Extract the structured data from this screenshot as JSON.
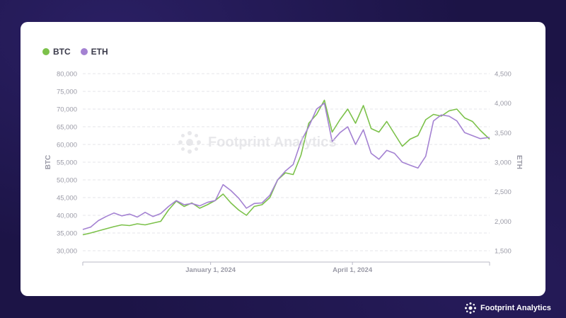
{
  "brand": {
    "name": "Footprint Analytics",
    "icon": "footprint-logo-icon"
  },
  "watermark": "Footprint Analytics",
  "colors": {
    "btc": "#7cc14a",
    "eth": "#a482d2",
    "grid": "#e6e6ea",
    "axis_text": "#9a9aa6",
    "background": "#1c1446"
  },
  "chart_data": {
    "type": "line",
    "title": "",
    "legend": [
      "BTC",
      "ETH"
    ],
    "legend_placement": "top-left",
    "grid": true,
    "x_axis": {
      "ticks": [
        "January 1, 2024",
        "April 1, 2024"
      ],
      "range": [
        "2023-10-11",
        "2024-06-28"
      ]
    },
    "y_left": {
      "label": "BTC",
      "range": [
        30000,
        80000
      ],
      "ticks": [
        "30,000",
        "35,000",
        "40,000",
        "45,000",
        "50,000",
        "55,000",
        "60,000",
        "65,000",
        "70,000",
        "75,000",
        "80,000"
      ]
    },
    "y_right": {
      "label": "ETH",
      "range": [
        1500,
        4500
      ],
      "ticks": [
        "1,500",
        "2,000",
        "2,500",
        "3,000",
        "3,500",
        "4,000",
        "4,500"
      ]
    },
    "series": [
      {
        "name": "BTC",
        "axis": "left",
        "points": [
          [
            "2023-10-11",
            34500
          ],
          [
            "2023-10-16",
            35000
          ],
          [
            "2023-10-21",
            35600
          ],
          [
            "2023-10-26",
            36200
          ],
          [
            "2023-10-31",
            36800
          ],
          [
            "2023-11-05",
            37300
          ],
          [
            "2023-11-10",
            37100
          ],
          [
            "2023-11-15",
            37600
          ],
          [
            "2023-11-20",
            37300
          ],
          [
            "2023-11-25",
            37800
          ],
          [
            "2023-11-30",
            38300
          ],
          [
            "2023-12-05",
            41500
          ],
          [
            "2023-12-10",
            44000
          ],
          [
            "2023-12-15",
            42500
          ],
          [
            "2023-12-20",
            43500
          ],
          [
            "2023-12-25",
            42000
          ],
          [
            "2023-12-30",
            43000
          ],
          [
            "2024-01-04",
            44200
          ],
          [
            "2024-01-09",
            46000
          ],
          [
            "2024-01-14",
            43500
          ],
          [
            "2024-01-19",
            41500
          ],
          [
            "2024-01-24",
            40000
          ],
          [
            "2024-01-29",
            42500
          ],
          [
            "2024-02-03",
            43000
          ],
          [
            "2024-02-08",
            45000
          ],
          [
            "2024-02-13",
            50000
          ],
          [
            "2024-02-18",
            52000
          ],
          [
            "2024-02-23",
            51500
          ],
          [
            "2024-02-28",
            57000
          ],
          [
            "2024-03-04",
            66000
          ],
          [
            "2024-03-09",
            68500
          ],
          [
            "2024-03-14",
            72500
          ],
          [
            "2024-03-19",
            63500
          ],
          [
            "2024-03-24",
            67000
          ],
          [
            "2024-03-29",
            70000
          ],
          [
            "2024-04-03",
            66000
          ],
          [
            "2024-04-08",
            71000
          ],
          [
            "2024-04-13",
            64500
          ],
          [
            "2024-04-18",
            63500
          ],
          [
            "2024-04-23",
            66500
          ],
          [
            "2024-04-28",
            63000
          ],
          [
            "2024-05-03",
            59500
          ],
          [
            "2024-05-08",
            61500
          ],
          [
            "2024-05-13",
            62500
          ],
          [
            "2024-05-18",
            67000
          ],
          [
            "2024-05-23",
            68500
          ],
          [
            "2024-05-28",
            68000
          ],
          [
            "2024-06-02",
            69500
          ],
          [
            "2024-06-07",
            70000
          ],
          [
            "2024-06-12",
            67500
          ],
          [
            "2024-06-17",
            66500
          ],
          [
            "2024-06-22",
            64000
          ],
          [
            "2024-06-28",
            61500
          ]
        ]
      },
      {
        "name": "ETH",
        "axis": "right",
        "points": [
          [
            "2023-10-11",
            1860
          ],
          [
            "2023-10-16",
            1900
          ],
          [
            "2023-10-21",
            2010
          ],
          [
            "2023-10-26",
            2080
          ],
          [
            "2023-10-31",
            2140
          ],
          [
            "2023-11-05",
            2090
          ],
          [
            "2023-11-10",
            2120
          ],
          [
            "2023-11-15",
            2070
          ],
          [
            "2023-11-20",
            2150
          ],
          [
            "2023-11-25",
            2080
          ],
          [
            "2023-11-30",
            2130
          ],
          [
            "2023-12-05",
            2250
          ],
          [
            "2023-12-10",
            2350
          ],
          [
            "2023-12-15",
            2280
          ],
          [
            "2023-12-20",
            2300
          ],
          [
            "2023-12-25",
            2260
          ],
          [
            "2023-12-30",
            2320
          ],
          [
            "2024-01-04",
            2350
          ],
          [
            "2024-01-09",
            2620
          ],
          [
            "2024-01-14",
            2520
          ],
          [
            "2024-01-19",
            2390
          ],
          [
            "2024-01-24",
            2220
          ],
          [
            "2024-01-29",
            2300
          ],
          [
            "2024-02-03",
            2310
          ],
          [
            "2024-02-08",
            2440
          ],
          [
            "2024-02-13",
            2700
          ],
          [
            "2024-02-18",
            2850
          ],
          [
            "2024-02-23",
            2960
          ],
          [
            "2024-02-28",
            3350
          ],
          [
            "2024-03-04",
            3600
          ],
          [
            "2024-03-09",
            3900
          ],
          [
            "2024-03-14",
            4000
          ],
          [
            "2024-03-19",
            3350
          ],
          [
            "2024-03-24",
            3500
          ],
          [
            "2024-03-29",
            3600
          ],
          [
            "2024-04-03",
            3300
          ],
          [
            "2024-04-08",
            3550
          ],
          [
            "2024-04-13",
            3150
          ],
          [
            "2024-04-18",
            3050
          ],
          [
            "2024-04-23",
            3200
          ],
          [
            "2024-04-28",
            3150
          ],
          [
            "2024-05-03",
            3000
          ],
          [
            "2024-05-08",
            2950
          ],
          [
            "2024-05-13",
            2900
          ],
          [
            "2024-05-18",
            3100
          ],
          [
            "2024-05-23",
            3700
          ],
          [
            "2024-05-28",
            3800
          ],
          [
            "2024-06-02",
            3780
          ],
          [
            "2024-06-07",
            3700
          ],
          [
            "2024-06-12",
            3500
          ],
          [
            "2024-06-17",
            3450
          ],
          [
            "2024-06-22",
            3400
          ],
          [
            "2024-06-28",
            3420
          ]
        ]
      }
    ]
  }
}
